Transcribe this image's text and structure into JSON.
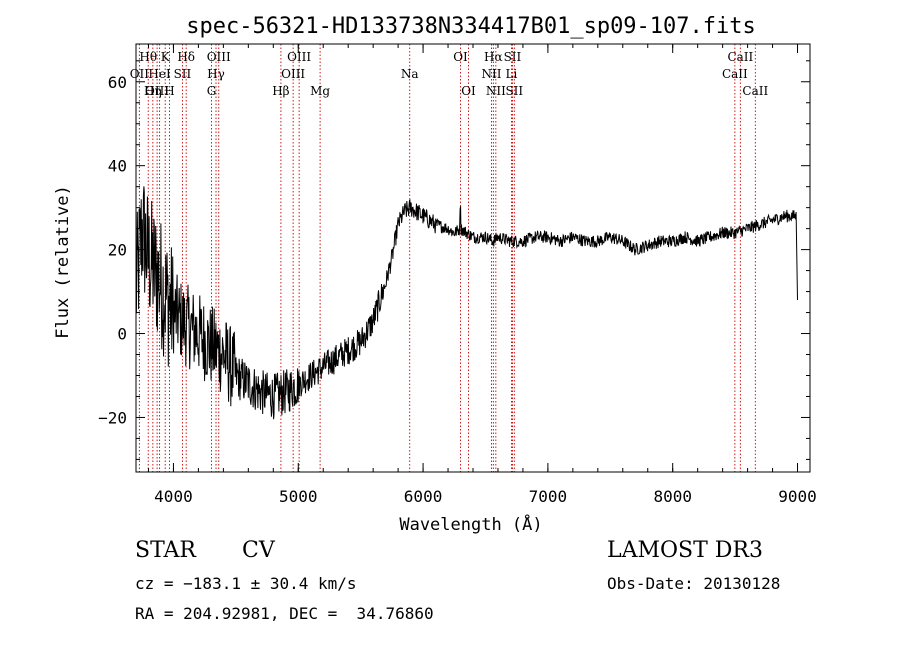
{
  "chart_data": {
    "type": "line",
    "title": "spec-56321-HD133738N334417B01_sp09-107.fits",
    "xlabel": "Wavelength (Å)",
    "ylabel": "Flux (relative)",
    "xlim": [
      3700,
      9100
    ],
    "ylim": [
      -33,
      69
    ],
    "xticks": [
      4000,
      5000,
      6000,
      7000,
      8000,
      9000
    ],
    "xtick_labels": [
      "4000",
      "5000",
      "6000",
      "7000",
      "8000",
      "9000"
    ],
    "yticks": [
      -20,
      0,
      20,
      40,
      60
    ],
    "ytick_labels": [
      "−20",
      "0",
      "20",
      "40",
      "60"
    ],
    "grid": false,
    "series": [
      {
        "color": "#000000",
        "x": [
          3700,
          3750,
          3800,
          3850,
          3900,
          3950,
          4000,
          4100,
          4200,
          4300,
          4400,
          4500,
          4600,
          4700,
          4800,
          4900,
          5000,
          5100,
          5200,
          5300,
          5400,
          5500,
          5600,
          5700,
          5750,
          5800,
          5850,
          5900,
          5950,
          6000,
          6100,
          6200,
          6250,
          6300,
          6350,
          6400,
          6500,
          6563,
          6600,
          6700,
          6800,
          6900,
          7000,
          7100,
          7200,
          7300,
          7400,
          7500,
          7600,
          7700,
          7800,
          7900,
          8000,
          8100,
          8200,
          8300,
          8400,
          8500,
          8600,
          8700,
          8800,
          8900,
          8950,
          8990,
          9000
        ],
        "y": [
          10,
          25,
          18,
          15,
          12,
          8,
          5,
          2,
          0,
          -3,
          -5,
          -10,
          -12,
          -14,
          -15,
          -14,
          -12,
          -10,
          -8,
          -6,
          -4,
          -2,
          3,
          12,
          18,
          26,
          29,
          30,
          29,
          28,
          26,
          25,
          24,
          25,
          24,
          23,
          23,
          22,
          23,
          22,
          22,
          23,
          23,
          22,
          23,
          22,
          22,
          23,
          22,
          20,
          21,
          22,
          22,
          23,
          22,
          23,
          24,
          24,
          25,
          26,
          27,
          28,
          28,
          28,
          8
        ]
      }
    ],
    "lines": [
      {
        "label": "Hθ",
        "x": 3798,
        "row": 0
      },
      {
        "label": "K",
        "x": 3934,
        "row": 0
      },
      {
        "label": "Hδ",
        "x": 4102,
        "row": 0
      },
      {
        "label": "OIII",
        "x": 4363,
        "row": 0
      },
      {
        "label": "OIII",
        "x": 5007,
        "row": 0
      },
      {
        "label": "OI",
        "x": 6300,
        "row": 0
      },
      {
        "label": "Hα",
        "x": 6563,
        "row": 0
      },
      {
        "label": "SII",
        "x": 6716,
        "row": 0
      },
      {
        "label": "CaII",
        "x": 8542,
        "row": 0
      },
      {
        "label": "OII",
        "x": 3727,
        "row": 1
      },
      {
        "label": "HeI",
        "x": 3889,
        "row": 1
      },
      {
        "label": "SII",
        "x": 4072,
        "row": 1
      },
      {
        "label": "Hγ",
        "x": 4341,
        "row": 1
      },
      {
        "label": "OIII",
        "x": 4959,
        "row": 1
      },
      {
        "label": "Na",
        "x": 5893,
        "row": 1
      },
      {
        "label": "NII",
        "x": 6548,
        "row": 1
      },
      {
        "label": "Li",
        "x": 6708,
        "row": 1
      },
      {
        "label": "CaII",
        "x": 8498,
        "row": 1
      },
      {
        "label": "OIII",
        "x": 3869,
        "row": 2
      },
      {
        "label": "Hη",
        "x": 3835,
        "row": 2
      },
      {
        "label": "H",
        "x": 3968,
        "row": 2
      },
      {
        "label": "G",
        "x": 4305,
        "row": 2
      },
      {
        "label": "Hβ",
        "x": 4861,
        "row": 2
      },
      {
        "label": "Mg",
        "x": 5175,
        "row": 2
      },
      {
        "label": "OI",
        "x": 6364,
        "row": 2
      },
      {
        "label": "NII",
        "x": 6583,
        "row": 2
      },
      {
        "label": "SII",
        "x": 6731,
        "row": 2
      },
      {
        "label": "CaII",
        "x": 8662,
        "row": 2
      }
    ]
  },
  "info": {
    "class": "STAR",
    "subclass": "CV",
    "survey": "LAMOST DR3",
    "cz": "cz = −183.1 ± 30.4 km/s",
    "obs_date": "Obs-Date: 20130128",
    "radec": "RA = 204.92981, DEC =  34.76860"
  }
}
